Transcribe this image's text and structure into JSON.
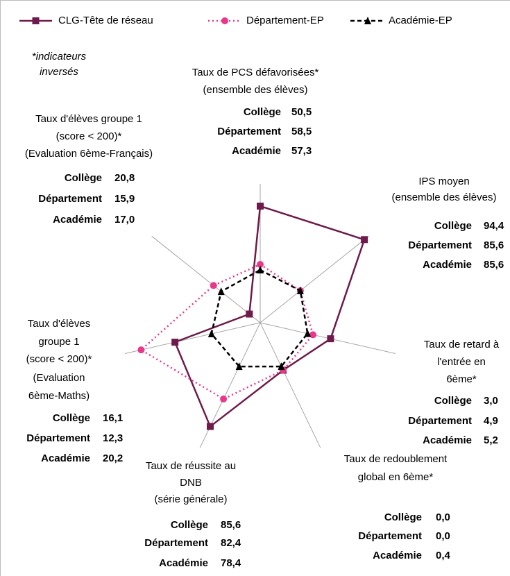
{
  "chart_data": {
    "type": "radar",
    "note": [
      "*indicateurs",
      "inversés"
    ],
    "rlim": [
      0,
      100
    ],
    "row_labels": [
      "Collège",
      "Département",
      "Académie"
    ],
    "categories": [
      [
        "Taux de PCS défavorisées*",
        "(ensemble des élèves)"
      ],
      [
        "IPS moyen",
        "(ensemble des élèves)"
      ],
      [
        "Taux de retard à",
        "l'entrée en",
        "6ème*"
      ],
      [
        "Taux de redoublement",
        "global en 6ème*"
      ],
      [
        "Taux de réussite au",
        "DNB",
        "(série générale)"
      ],
      [
        "Taux d'élèves",
        "groupe 1",
        "(score < 200)*",
        "(Evaluation",
        "6ème-Maths)"
      ],
      [
        "Taux d'élèves groupe 1",
        "(score < 200)*",
        "(Evaluation 6ème-Français)"
      ]
    ],
    "indicator_values": [
      [
        "50,5",
        "58,5",
        "57,3"
      ],
      [
        "94,4",
        "85,6",
        "85,6"
      ],
      [
        "3,0",
        "4,9",
        "5,2"
      ],
      [
        "0,0",
        "0,0",
        "0,4"
      ],
      [
        "85,6",
        "82,4",
        "78,4"
      ],
      [
        "16,1",
        "12,3",
        "20,2"
      ],
      [
        "20,8",
        "15,9",
        "17,0"
      ]
    ],
    "series": [
      {
        "name": "CLG-Tête de réseau",
        "color": "#6e1a4a",
        "marker": "square",
        "line": "solid",
        "values": [
          84,
          96,
          52,
          38,
          83,
          63,
          10
        ]
      },
      {
        "name": "Département-EP",
        "color": "#e8388a",
        "marker": "circle",
        "line": "dotted",
        "values": [
          42,
          37,
          39,
          38,
          61,
          88,
          43
        ]
      },
      {
        "name": "Académie-EP",
        "color": "#000000",
        "marker": "triangle",
        "line": "dashed",
        "values": [
          38,
          37,
          35,
          35,
          35,
          36,
          36
        ]
      }
    ]
  }
}
